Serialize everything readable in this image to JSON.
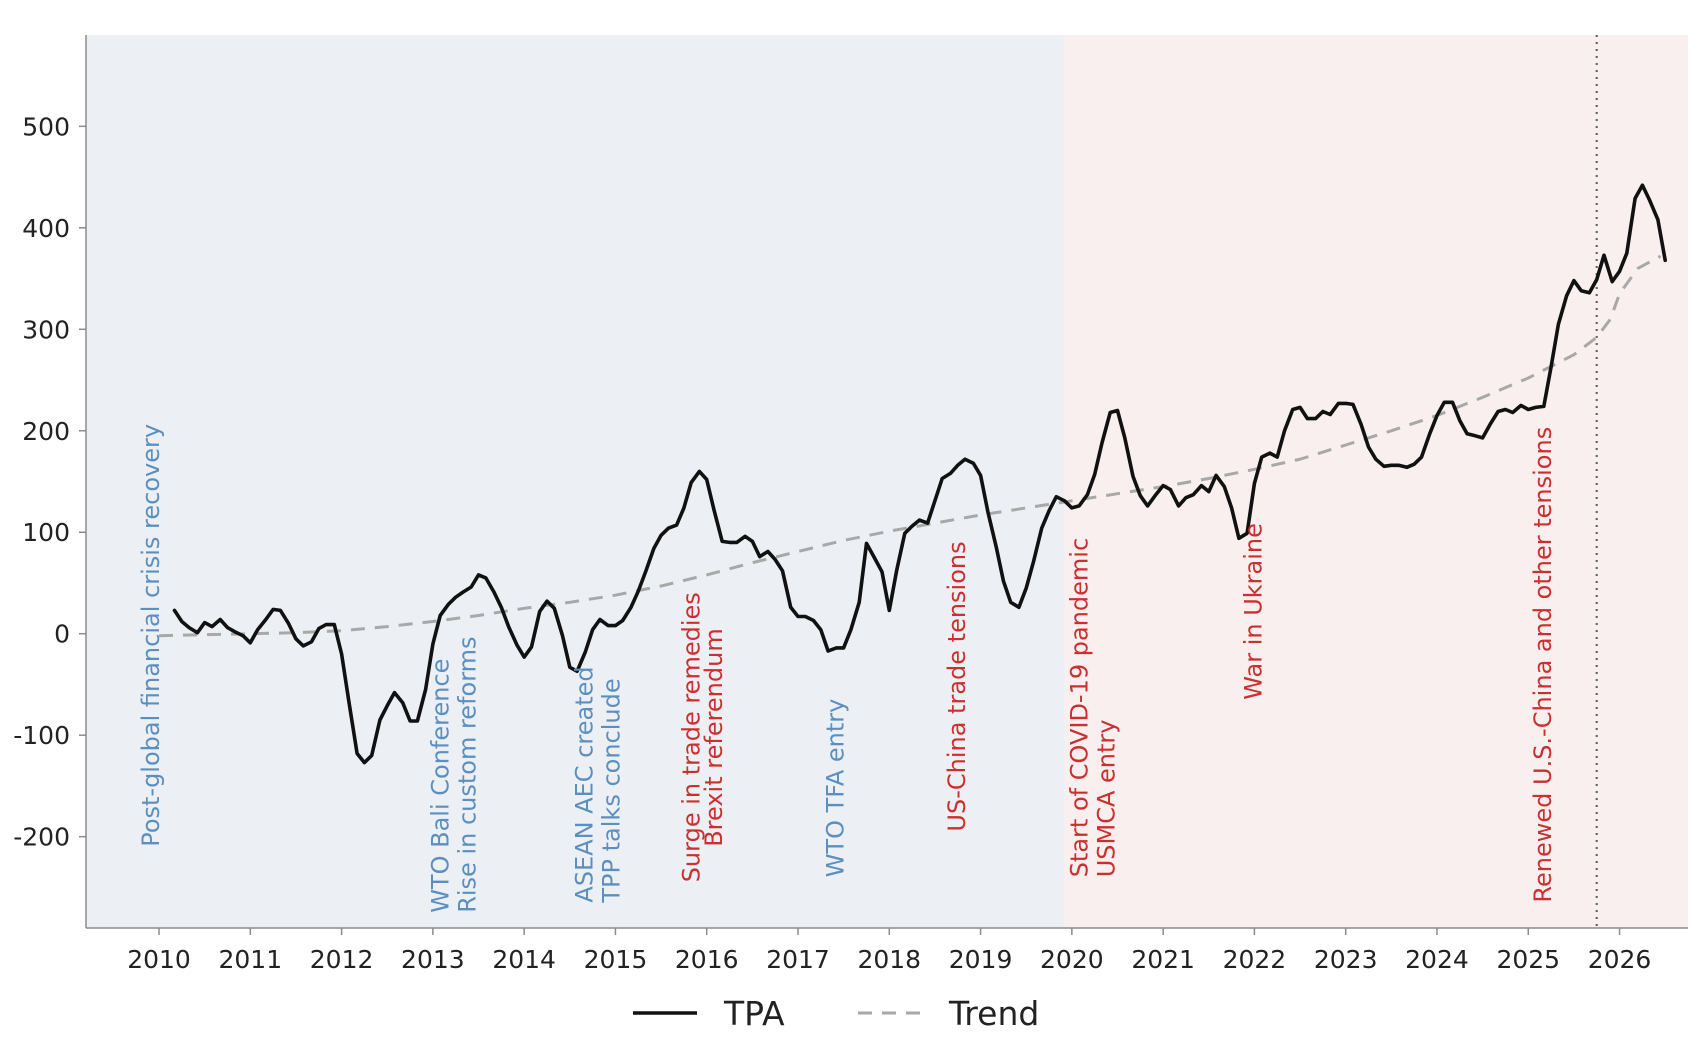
{
  "chart_data": {
    "type": "line",
    "title": "",
    "xlabel": "",
    "ylabel": "",
    "xlim": [
      2009.2,
      2026.75
    ],
    "ylim": [
      -290,
      590
    ],
    "xticks": [
      2010,
      2011,
      2012,
      2013,
      2014,
      2015,
      2016,
      2017,
      2018,
      2019,
      2020,
      2021,
      2022,
      2023,
      2024,
      2025,
      2026
    ],
    "yticks": [
      -200,
      -100,
      0,
      100,
      200,
      300,
      400,
      500
    ],
    "grid": false,
    "legend": {
      "placement": "bottom-center",
      "entries": [
        "TPA",
        "Trend"
      ]
    },
    "colors": {
      "tpa": "#111111",
      "trend": "#a8a8a8",
      "region_before": "#ecf0f4",
      "region_after": "#f8efee",
      "blue_events": "#5b8fc0",
      "red_events": "#cc2f2f",
      "axis": "#8c8c8c"
    },
    "regions": [
      {
        "start": 2009.2,
        "end": 2019.92,
        "color": "region_before"
      },
      {
        "start": 2019.92,
        "end": 2026.75,
        "color": "region_after"
      }
    ],
    "vline": {
      "x": 2025.75,
      "style": "dotted"
    },
    "series": [
      {
        "name": "TPA",
        "style": "solid",
        "points": [
          [
            2010.17,
            23
          ],
          [
            2010.25,
            12
          ],
          [
            2010.33,
            6
          ],
          [
            2010.42,
            1
          ],
          [
            2010.5,
            11
          ],
          [
            2010.58,
            7
          ],
          [
            2010.67,
            14
          ],
          [
            2010.75,
            6
          ],
          [
            2010.83,
            2
          ],
          [
            2010.92,
            -2
          ],
          [
            2011.0,
            -9
          ],
          [
            2011.08,
            4
          ],
          [
            2011.17,
            14
          ],
          [
            2011.25,
            24
          ],
          [
            2011.33,
            23
          ],
          [
            2011.42,
            10
          ],
          [
            2011.5,
            -5
          ],
          [
            2011.58,
            -12
          ],
          [
            2011.67,
            -8
          ],
          [
            2011.75,
            5
          ],
          [
            2011.83,
            9
          ],
          [
            2011.92,
            9
          ],
          [
            2012.0,
            -20
          ],
          [
            2012.08,
            -67
          ],
          [
            2012.17,
            -118
          ],
          [
            2012.25,
            -127
          ],
          [
            2012.33,
            -120
          ],
          [
            2012.42,
            -85
          ],
          [
            2012.5,
            -71
          ],
          [
            2012.58,
            -58
          ],
          [
            2012.67,
            -68
          ],
          [
            2012.75,
            -86
          ],
          [
            2012.83,
            -86
          ],
          [
            2012.92,
            -55
          ],
          [
            2013.0,
            -10
          ],
          [
            2013.08,
            18
          ],
          [
            2013.17,
            29
          ],
          [
            2013.25,
            36
          ],
          [
            2013.33,
            41
          ],
          [
            2013.42,
            46
          ],
          [
            2013.5,
            58
          ],
          [
            2013.58,
            55
          ],
          [
            2013.67,
            41
          ],
          [
            2013.75,
            26
          ],
          [
            2013.83,
            7
          ],
          [
            2013.92,
            -11
          ],
          [
            2014.0,
            -23
          ],
          [
            2014.08,
            -13
          ],
          [
            2014.17,
            22
          ],
          [
            2014.25,
            32
          ],
          [
            2014.33,
            25
          ],
          [
            2014.42,
            -2
          ],
          [
            2014.5,
            -33
          ],
          [
            2014.58,
            -37
          ],
          [
            2014.67,
            -18
          ],
          [
            2014.75,
            4
          ],
          [
            2014.83,
            14
          ],
          [
            2014.92,
            8
          ],
          [
            2015.0,
            8
          ],
          [
            2015.08,
            13
          ],
          [
            2015.17,
            26
          ],
          [
            2015.25,
            42
          ],
          [
            2015.33,
            61
          ],
          [
            2015.42,
            84
          ],
          [
            2015.5,
            97
          ],
          [
            2015.58,
            104
          ],
          [
            2015.67,
            107
          ],
          [
            2015.75,
            124
          ],
          [
            2015.83,
            149
          ],
          [
            2015.92,
            160
          ],
          [
            2016.0,
            152
          ],
          [
            2016.08,
            122
          ],
          [
            2016.17,
            91
          ],
          [
            2016.25,
            90
          ],
          [
            2016.33,
            90
          ],
          [
            2016.42,
            96
          ],
          [
            2016.5,
            91
          ],
          [
            2016.58,
            76
          ],
          [
            2016.67,
            81
          ],
          [
            2016.75,
            73
          ],
          [
            2016.83,
            62
          ],
          [
            2016.92,
            26
          ],
          [
            2017.0,
            17
          ],
          [
            2017.08,
            17
          ],
          [
            2017.17,
            13
          ],
          [
            2017.25,
            4
          ],
          [
            2017.33,
            -17
          ],
          [
            2017.42,
            -14
          ],
          [
            2017.5,
            -14
          ],
          [
            2017.58,
            4
          ],
          [
            2017.67,
            31
          ],
          [
            2017.75,
            89
          ],
          [
            2017.83,
            76
          ],
          [
            2017.92,
            61
          ],
          [
            2018.0,
            23
          ],
          [
            2018.08,
            62
          ],
          [
            2018.17,
            99
          ],
          [
            2018.25,
            106
          ],
          [
            2018.33,
            112
          ],
          [
            2018.42,
            109
          ],
          [
            2018.5,
            131
          ],
          [
            2018.58,
            153
          ],
          [
            2018.67,
            158
          ],
          [
            2018.75,
            166
          ],
          [
            2018.83,
            172
          ],
          [
            2018.92,
            168
          ],
          [
            2019.0,
            156
          ],
          [
            2019.08,
            120
          ],
          [
            2019.17,
            86
          ],
          [
            2019.25,
            52
          ],
          [
            2019.33,
            31
          ],
          [
            2019.42,
            26
          ],
          [
            2019.5,
            45
          ],
          [
            2019.58,
            71
          ],
          [
            2019.67,
            104
          ],
          [
            2019.75,
            121
          ],
          [
            2019.83,
            135
          ],
          [
            2019.92,
            131
          ],
          [
            2020.0,
            124
          ],
          [
            2020.08,
            126
          ],
          [
            2020.17,
            137
          ],
          [
            2020.25,
            157
          ],
          [
            2020.33,
            188
          ],
          [
            2020.42,
            218
          ],
          [
            2020.5,
            220
          ],
          [
            2020.58,
            193
          ],
          [
            2020.67,
            155
          ],
          [
            2020.75,
            136
          ],
          [
            2020.83,
            126
          ],
          [
            2020.92,
            137
          ],
          [
            2021.0,
            146
          ],
          [
            2021.08,
            142
          ],
          [
            2021.17,
            126
          ],
          [
            2021.25,
            134
          ],
          [
            2021.33,
            137
          ],
          [
            2021.42,
            146
          ],
          [
            2021.5,
            140
          ],
          [
            2021.58,
            156
          ],
          [
            2021.67,
            145
          ],
          [
            2021.75,
            124
          ],
          [
            2021.83,
            94
          ],
          [
            2021.92,
            99
          ],
          [
            2022.0,
            148
          ],
          [
            2022.08,
            174
          ],
          [
            2022.17,
            178
          ],
          [
            2022.25,
            174
          ],
          [
            2022.33,
            200
          ],
          [
            2022.42,
            221
          ],
          [
            2022.5,
            223
          ],
          [
            2022.58,
            212
          ],
          [
            2022.67,
            212
          ],
          [
            2022.75,
            219
          ],
          [
            2022.83,
            216
          ],
          [
            2022.92,
            227
          ],
          [
            2023.0,
            227
          ],
          [
            2023.08,
            226
          ],
          [
            2023.17,
            206
          ],
          [
            2023.25,
            184
          ],
          [
            2023.33,
            172
          ],
          [
            2023.42,
            165
          ],
          [
            2023.5,
            166
          ],
          [
            2023.58,
            166
          ],
          [
            2023.67,
            164
          ],
          [
            2023.75,
            167
          ],
          [
            2023.83,
            174
          ],
          [
            2023.92,
            197
          ],
          [
            2024.0,
            215
          ],
          [
            2024.08,
            228
          ],
          [
            2024.17,
            228
          ],
          [
            2024.25,
            210
          ],
          [
            2024.33,
            197
          ],
          [
            2024.42,
            195
          ],
          [
            2024.5,
            193
          ],
          [
            2024.58,
            206
          ],
          [
            2024.67,
            219
          ],
          [
            2024.75,
            221
          ],
          [
            2024.83,
            218
          ],
          [
            2024.92,
            225
          ],
          [
            2025.0,
            221
          ],
          [
            2025.08,
            223
          ],
          [
            2025.17,
            224
          ],
          [
            2025.25,
            263
          ],
          [
            2025.33,
            305
          ],
          [
            2025.42,
            333
          ],
          [
            2025.5,
            348
          ],
          [
            2025.58,
            338
          ],
          [
            2025.67,
            336
          ],
          [
            2025.75,
            349
          ],
          [
            2025.83,
            373
          ],
          [
            2025.92,
            347
          ],
          [
            2026.0,
            357
          ],
          [
            2026.08,
            375
          ],
          [
            2026.17,
            429
          ],
          [
            2026.25,
            442
          ],
          [
            2026.33,
            427
          ],
          [
            2026.42,
            408
          ],
          [
            2026.5,
            368
          ]
        ]
      },
      {
        "name": "Trend",
        "style": "dashed",
        "points": [
          [
            2010.0,
            -2
          ],
          [
            2010.5,
            -1
          ],
          [
            2011.0,
            0
          ],
          [
            2011.5,
            1
          ],
          [
            2012.0,
            3
          ],
          [
            2012.5,
            7
          ],
          [
            2013.0,
            12
          ],
          [
            2013.5,
            18
          ],
          [
            2014.0,
            25
          ],
          [
            2014.5,
            31
          ],
          [
            2015.0,
            38
          ],
          [
            2015.5,
            47
          ],
          [
            2016.0,
            58
          ],
          [
            2016.5,
            70
          ],
          [
            2017.0,
            81
          ],
          [
            2017.5,
            92
          ],
          [
            2018.0,
            101
          ],
          [
            2018.5,
            109
          ],
          [
            2019.0,
            117
          ],
          [
            2019.5,
            124
          ],
          [
            2020.0,
            131
          ],
          [
            2020.5,
            138
          ],
          [
            2021.0,
            145
          ],
          [
            2021.5,
            153
          ],
          [
            2022.0,
            162
          ],
          [
            2022.5,
            172
          ],
          [
            2023.0,
            186
          ],
          [
            2023.5,
            200
          ],
          [
            2024.0,
            215
          ],
          [
            2024.5,
            233
          ],
          [
            2025.0,
            252
          ],
          [
            2025.5,
            275
          ],
          [
            2025.75,
            292
          ],
          [
            2025.9,
            310
          ],
          [
            2026.0,
            335
          ],
          [
            2026.2,
            360
          ],
          [
            2026.45,
            372
          ]
        ]
      }
    ],
    "annotations": [
      {
        "lines": [
          "Post-global financial crisis recovery"
        ],
        "x": 2010.0,
        "y": -210,
        "color": "blue_events"
      },
      {
        "lines": [
          "WTO Bali Conference",
          "Rise in custom reforms"
        ],
        "x": 2013.17,
        "y": -275,
        "color": "blue_events"
      },
      {
        "lines": [
          "ASEAN AEC created",
          "TPP talks conclude"
        ],
        "x": 2014.75,
        "y": -265,
        "color": "blue_events"
      },
      {
        "lines": [
          "Surge in trade remedies"
        ],
        "x": 2015.92,
        "y": -245,
        "color": "red_events"
      },
      {
        "lines": [
          "Brexit referendum"
        ],
        "x": 2016.17,
        "y": -210,
        "color": "red_events"
      },
      {
        "lines": [
          "WTO TFA entry"
        ],
        "x": 2017.5,
        "y": -240,
        "color": "blue_events"
      },
      {
        "lines": [
          "US-China trade tensions"
        ],
        "x": 2018.83,
        "y": -195,
        "color": "red_events"
      },
      {
        "lines": [
          "Start of COVID-19 pandemic",
          "USMCA entry"
        ],
        "x": 2020.17,
        "y": -240,
        "color": "red_events"
      },
      {
        "lines": [
          "War in Ukraine"
        ],
        "x": 2022.08,
        "y": -65,
        "color": "red_events"
      },
      {
        "lines": [
          "Renewed U.S.-China and other tensions"
        ],
        "x": 2025.25,
        "y": -265,
        "color": "red_events"
      }
    ]
  }
}
